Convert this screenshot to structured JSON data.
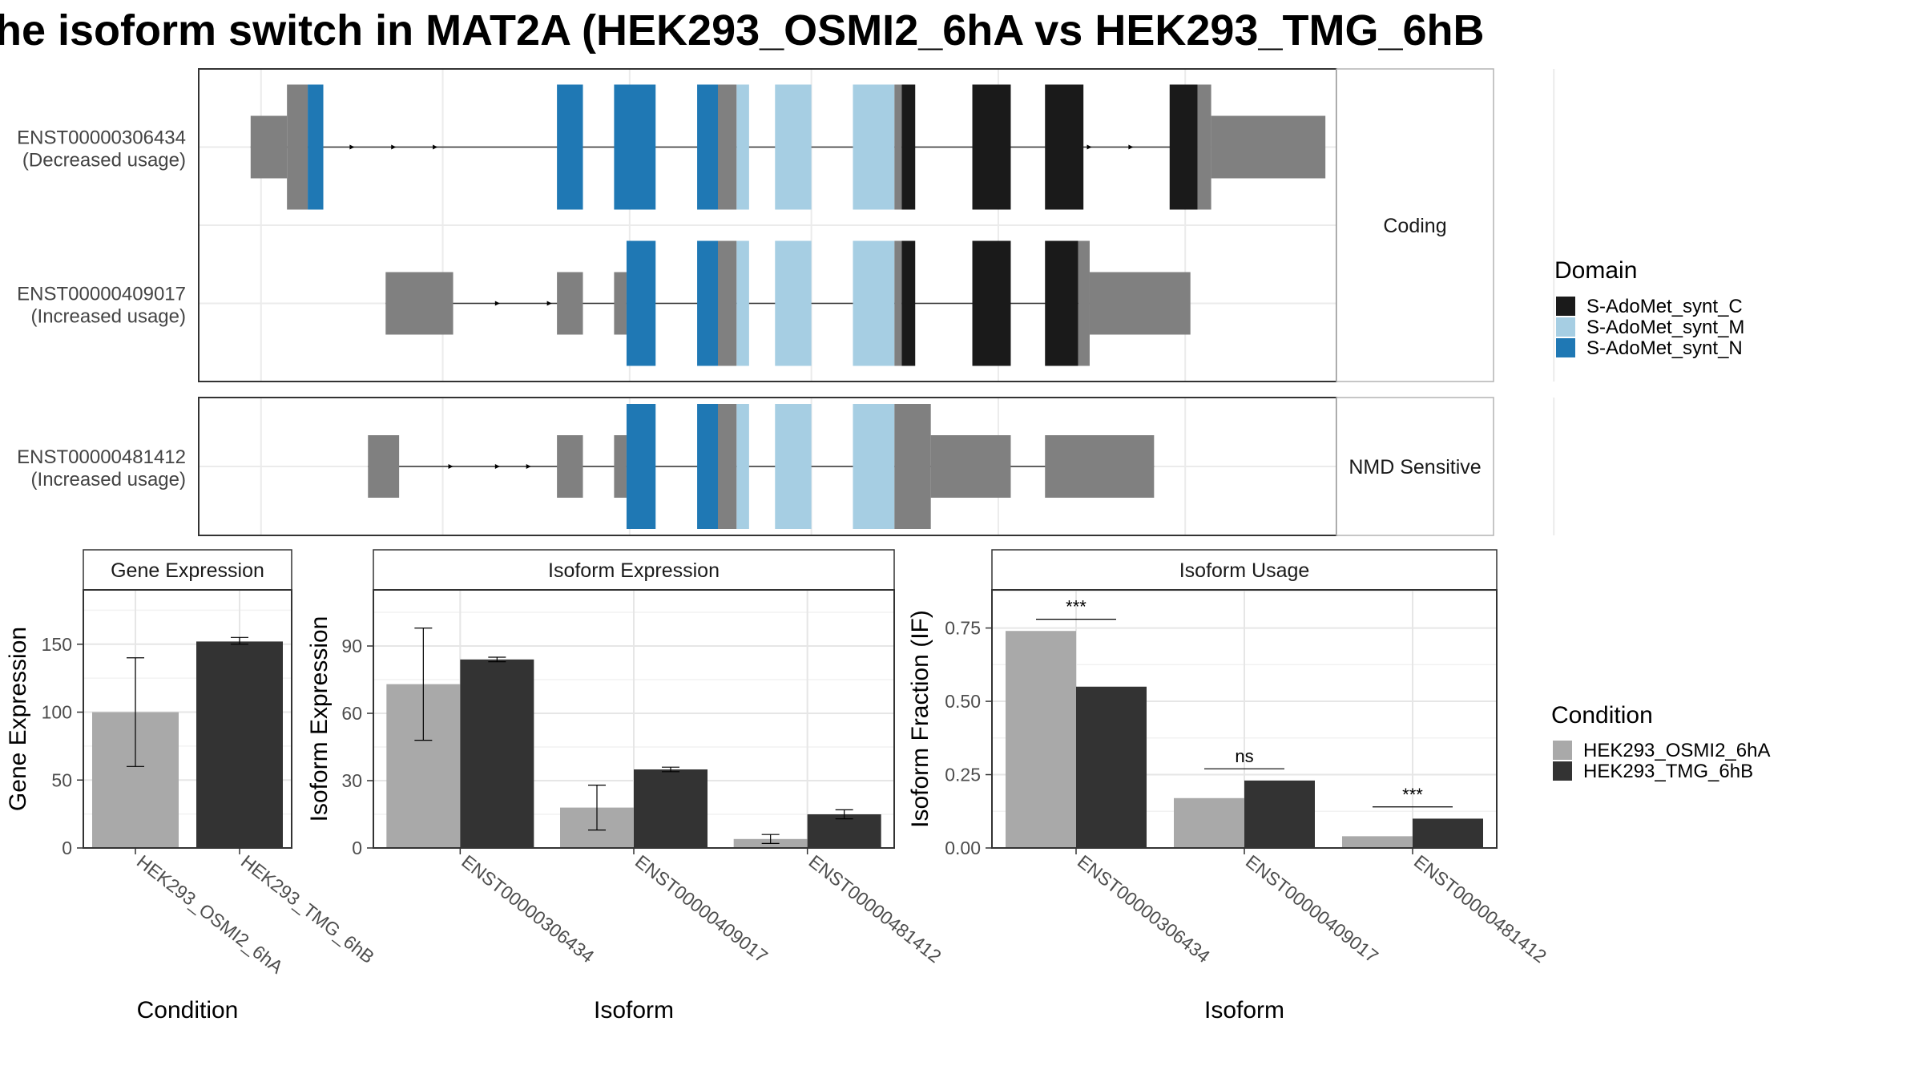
{
  "title": "he isoform switch in MAT2A (HEK293_OSMI2_6hA vs HEK293_TMG_6hB",
  "colors": {
    "domain_C": "#1a1a1a",
    "domain_M": "#a6cee3",
    "domain_N": "#1f78b4",
    "noncoding": "#808080",
    "condition_A": "#a9a9a9",
    "condition_B": "#333333",
    "intron": "#333333"
  },
  "structure": {
    "facets": [
      "Coding",
      "NMD Sensitive"
    ],
    "transcripts": [
      {
        "id": "ENST00000306434",
        "usage": "(Decreased usage)",
        "facet": "Coding",
        "intron_span": [
          0.05,
          0.95
        ],
        "arrows": [
          0.11,
          0.15,
          0.19,
          0.23,
          0.82,
          0.86,
          0.9
        ],
        "blocks": [
          {
            "start": 0.05,
            "end": 0.085,
            "kind": "utr"
          },
          {
            "start": 0.085,
            "end": 0.105,
            "kind": "cds"
          },
          {
            "start": 0.105,
            "end": 0.12,
            "kind": "N"
          },
          {
            "start": 0.345,
            "end": 0.37,
            "kind": "N"
          },
          {
            "start": 0.4,
            "end": 0.44,
            "kind": "N"
          },
          {
            "start": 0.48,
            "end": 0.5,
            "kind": "N"
          },
          {
            "start": 0.5,
            "end": 0.518,
            "kind": "cds"
          },
          {
            "start": 0.518,
            "end": 0.53,
            "kind": "M"
          },
          {
            "start": 0.555,
            "end": 0.59,
            "kind": "M"
          },
          {
            "start": 0.63,
            "end": 0.67,
            "kind": "M"
          },
          {
            "start": 0.67,
            "end": 0.677,
            "kind": "cds"
          },
          {
            "start": 0.677,
            "end": 0.69,
            "kind": "C"
          },
          {
            "start": 0.745,
            "end": 0.782,
            "kind": "C"
          },
          {
            "start": 0.815,
            "end": 0.852,
            "kind": "C"
          },
          {
            "start": 0.935,
            "end": 0.962,
            "kind": "C"
          },
          {
            "start": 0.962,
            "end": 0.975,
            "kind": "cds"
          },
          {
            "start": 0.975,
            "end": 1.085,
            "kind": "utr"
          }
        ]
      },
      {
        "id": "ENST00000409017",
        "usage": "(Increased usage)",
        "facet": "Coding",
        "intron_span": [
          0.18,
          0.88
        ],
        "arrows": [
          0.29,
          0.34
        ],
        "blocks": [
          {
            "start": 0.18,
            "end": 0.245,
            "kind": "utr"
          },
          {
            "start": 0.345,
            "end": 0.37,
            "kind": "utr"
          },
          {
            "start": 0.4,
            "end": 0.412,
            "kind": "utr"
          },
          {
            "start": 0.412,
            "end": 0.44,
            "kind": "N"
          },
          {
            "start": 0.48,
            "end": 0.5,
            "kind": "N"
          },
          {
            "start": 0.5,
            "end": 0.518,
            "kind": "cds"
          },
          {
            "start": 0.518,
            "end": 0.53,
            "kind": "M"
          },
          {
            "start": 0.555,
            "end": 0.59,
            "kind": "M"
          },
          {
            "start": 0.63,
            "end": 0.67,
            "kind": "M"
          },
          {
            "start": 0.67,
            "end": 0.677,
            "kind": "cds"
          },
          {
            "start": 0.677,
            "end": 0.69,
            "kind": "C"
          },
          {
            "start": 0.745,
            "end": 0.782,
            "kind": "C"
          },
          {
            "start": 0.815,
            "end": 0.847,
            "kind": "C"
          },
          {
            "start": 0.847,
            "end": 0.858,
            "kind": "cds"
          },
          {
            "start": 0.858,
            "end": 0.955,
            "kind": "utr"
          }
        ]
      },
      {
        "id": "ENST00000481412",
        "usage": "(Increased usage)",
        "facet": "NMD Sensitive",
        "intron_span": [
          0.163,
          0.92
        ],
        "arrows": [
          0.245,
          0.29,
          0.32
        ],
        "blocks": [
          {
            "start": 0.163,
            "end": 0.193,
            "kind": "utr"
          },
          {
            "start": 0.345,
            "end": 0.37,
            "kind": "utr"
          },
          {
            "start": 0.4,
            "end": 0.412,
            "kind": "utr"
          },
          {
            "start": 0.412,
            "end": 0.44,
            "kind": "N"
          },
          {
            "start": 0.48,
            "end": 0.5,
            "kind": "N"
          },
          {
            "start": 0.5,
            "end": 0.518,
            "kind": "cds"
          },
          {
            "start": 0.518,
            "end": 0.53,
            "kind": "M"
          },
          {
            "start": 0.555,
            "end": 0.59,
            "kind": "M"
          },
          {
            "start": 0.63,
            "end": 0.67,
            "kind": "M"
          },
          {
            "start": 0.67,
            "end": 0.705,
            "kind": "cds"
          },
          {
            "start": 0.705,
            "end": 0.782,
            "kind": "utr"
          },
          {
            "start": 0.815,
            "end": 0.92,
            "kind": "utr"
          }
        ]
      }
    ]
  },
  "legends": {
    "domain": {
      "title": "Domain",
      "items": [
        {
          "label": "S-AdoMet_synt_C",
          "key": "domain_C"
        },
        {
          "label": "S-AdoMet_synt_M",
          "key": "domain_M"
        },
        {
          "label": "S-AdoMet_synt_N",
          "key": "domain_N"
        }
      ]
    },
    "condition": {
      "title": "Condition",
      "items": [
        {
          "label": "HEK293_OSMI2_6hA",
          "key": "condition_A"
        },
        {
          "label": "HEK293_TMG_6hB",
          "key": "condition_B"
        }
      ]
    }
  },
  "chart_data": [
    {
      "type": "bar",
      "title": "Gene Expression",
      "xlabel": "Condition",
      "ylabel": "Gene Expression",
      "ylim": [
        0,
        190
      ],
      "yticks": [
        0,
        50,
        100,
        150
      ],
      "tick_labels": [
        "0",
        "50",
        "100",
        "150"
      ],
      "categories": [
        "HEK293_OSMI2_6hA",
        "HEK293_TMG_6hB"
      ],
      "values": [
        100,
        152
      ],
      "errors": [
        [
          60,
          140
        ],
        [
          150,
          155
        ]
      ]
    },
    {
      "type": "bar",
      "title": "Isoform Expression",
      "xlabel": "Isoform",
      "ylabel": "Isoform Expression",
      "ylim": [
        0,
        115
      ],
      "yticks": [
        0,
        30,
        60,
        90
      ],
      "tick_labels": [
        "0",
        "30",
        "60",
        "90"
      ],
      "categories": [
        "ENST00000306434",
        "ENST00000409017",
        "ENST00000481412"
      ],
      "series": [
        {
          "name": "HEK293_OSMI2_6hA",
          "values": [
            73,
            18,
            4
          ],
          "errors": [
            [
              48,
              98
            ],
            [
              8,
              28
            ],
            [
              2,
              6
            ]
          ]
        },
        {
          "name": "HEK293_TMG_6hB",
          "values": [
            84,
            35,
            15
          ],
          "errors": [
            [
              83,
              85
            ],
            [
              34,
              36
            ],
            [
              13,
              17
            ]
          ]
        }
      ]
    },
    {
      "type": "bar",
      "title": "Isoform Usage",
      "xlabel": "Isoform",
      "ylabel": "Isoform Fraction (IF)",
      "ylim": [
        0,
        0.88
      ],
      "yticks": [
        0,
        0.25,
        0.5,
        0.75
      ],
      "tick_labels": [
        "0.00",
        "0.25",
        "0.50",
        "0.75"
      ],
      "categories": [
        "ENST00000306434",
        "ENST00000409017",
        "ENST00000481412"
      ],
      "series": [
        {
          "name": "HEK293_OSMI2_6hA",
          "values": [
            0.74,
            0.17,
            0.04
          ]
        },
        {
          "name": "HEK293_TMG_6hB",
          "values": [
            0.55,
            0.23,
            0.1
          ]
        }
      ],
      "significance": [
        {
          "label": "***",
          "y": 0.78
        },
        {
          "label": "ns",
          "y": 0.27
        },
        {
          "label": "***",
          "y": 0.14
        }
      ]
    }
  ]
}
